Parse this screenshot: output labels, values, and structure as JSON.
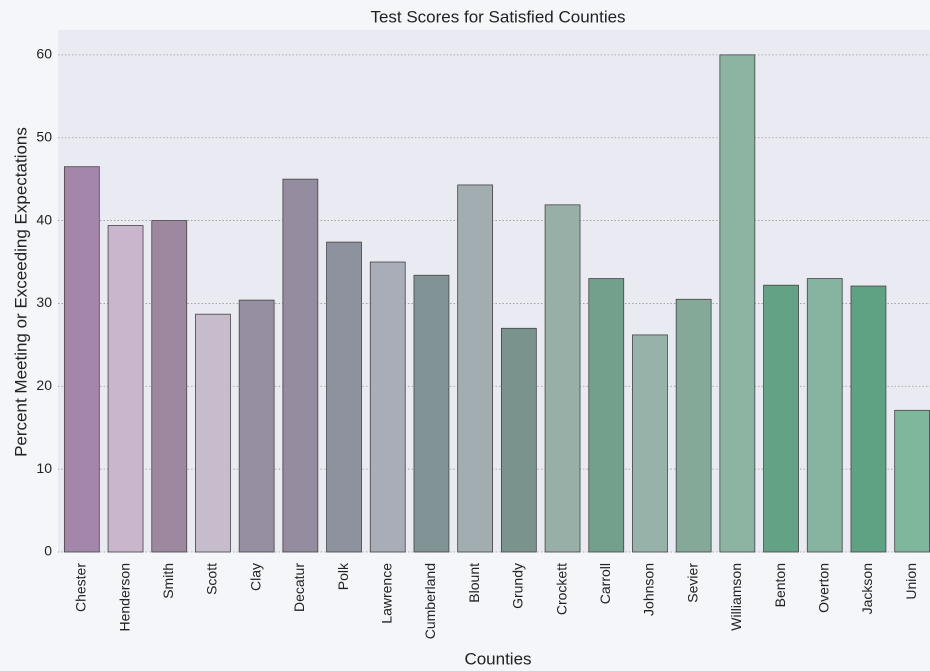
{
  "chart_data": {
    "type": "bar",
    "title": "Test Scores for Satisfied Counties",
    "x_label": "Counties",
    "y_label": "Percent Meeting or Exceeding Expectations",
    "categories": [
      "Chester",
      "Henderson",
      "Smith",
      "Scott",
      "Clay",
      "Decatur",
      "Polk",
      "Lawrence",
      "Cumberland",
      "Blount",
      "Grundy",
      "Crockett",
      "Carroll",
      "Johnson",
      "Sevier",
      "Williamson",
      "Benton",
      "Overton",
      "Jackson",
      "Union"
    ],
    "values": [
      46.5,
      39.4,
      40.0,
      28.7,
      30.4,
      45.0,
      37.4,
      35.0,
      33.4,
      44.3,
      27.0,
      41.9,
      33.0,
      26.2,
      30.5,
      60.0,
      32.2,
      33.0,
      32.1,
      17.1
    ],
    "colors": [
      "#a586ab",
      "#c9b5cc",
      "#9e889f",
      "#c7bccb",
      "#968fa2",
      "#958d9f",
      "#8e929e",
      "#a8adb7",
      "#829396",
      "#a2adb1",
      "#7a948d",
      "#98afa8",
      "#72a08c",
      "#97b2a9",
      "#84a998",
      "#8db4a3",
      "#64a285",
      "#86b4a0",
      "#5fa283",
      "#7eb79b"
    ],
    "ylim": [
      0,
      63
    ],
    "yticks": [
      0,
      10,
      20,
      30,
      40,
      50,
      60
    ],
    "grid": true
  }
}
